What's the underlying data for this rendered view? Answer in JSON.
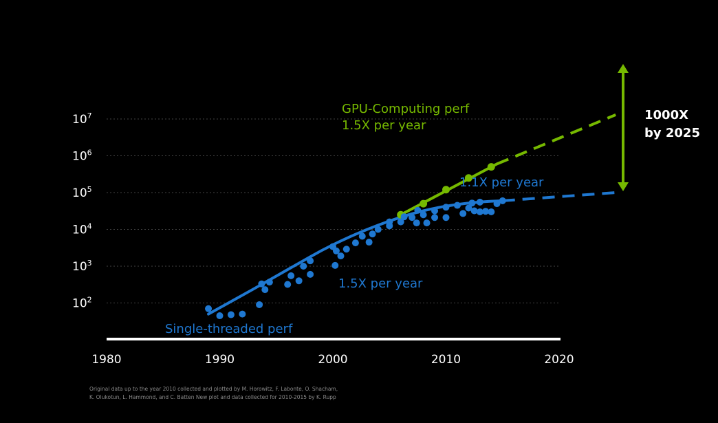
{
  "chart_data": {
    "type": "scatter",
    "title": "",
    "xlabel": "",
    "ylabel": "",
    "xlim": [
      1980,
      2025
    ],
    "ylim_log10": [
      1,
      7
    ],
    "y_scale": "log",
    "grid": true,
    "x_ticks": [
      "1980",
      "1990",
      "2000",
      "2010",
      "2020"
    ],
    "y_ticks": [
      {
        "base": "10",
        "exp": "7"
      },
      {
        "base": "10",
        "exp": "6"
      },
      {
        "base": "10",
        "exp": "5"
      },
      {
        "base": "10",
        "exp": "4"
      },
      {
        "base": "10",
        "exp": "3"
      },
      {
        "base": "10",
        "exp": "2"
      }
    ],
    "colors": {
      "gpu": "#76b900",
      "single": "#1f78d1",
      "axis": "#ffffff",
      "grid": "#444444"
    },
    "series": [
      {
        "name": "GPU-Computing perf",
        "points": [
          [
            2006,
            25000
          ],
          [
            2008,
            50000
          ],
          [
            2010,
            120000
          ],
          [
            2012,
            250000
          ],
          [
            2014,
            500000
          ]
        ],
        "trend_solid": [
          [
            2006,
            25000
          ],
          [
            2014.5,
            600000
          ]
        ],
        "trend_dashed": [
          [
            2014.5,
            600000
          ],
          [
            2025,
            13000000
          ]
        ]
      },
      {
        "name": "Single-threaded perf",
        "points": [
          [
            1989,
            70
          ],
          [
            1990,
            45
          ],
          [
            1991,
            48
          ],
          [
            1992,
            50
          ],
          [
            1993.5,
            90
          ],
          [
            1993.7,
            330
          ],
          [
            1994,
            230
          ],
          [
            1994.4,
            370
          ],
          [
            1996,
            320
          ],
          [
            1996.3,
            550
          ],
          [
            1997,
            400
          ],
          [
            1997.4,
            1000
          ],
          [
            1998,
            1400
          ],
          [
            1998,
            600
          ],
          [
            2000,
            3400
          ],
          [
            2000.3,
            2600
          ],
          [
            2000.7,
            1900
          ],
          [
            2000.2,
            1050
          ],
          [
            2001.2,
            2900
          ],
          [
            2002,
            4300
          ],
          [
            2002.6,
            6500
          ],
          [
            2003.2,
            4500
          ],
          [
            2003.5,
            7500
          ],
          [
            2004,
            10000
          ],
          [
            2005,
            12500
          ],
          [
            2005,
            16000
          ],
          [
            2006,
            16000
          ],
          [
            2006.3,
            22000
          ],
          [
            2007,
            21000
          ],
          [
            2007.5,
            33000
          ],
          [
            2007.4,
            15000
          ],
          [
            2008,
            25000
          ],
          [
            2008.3,
            15000
          ],
          [
            2009,
            32000
          ],
          [
            2009,
            21000
          ],
          [
            2010,
            40000
          ],
          [
            2010,
            21000
          ],
          [
            2011,
            45000
          ],
          [
            2011.5,
            27000
          ],
          [
            2012,
            38000
          ],
          [
            2012.3,
            52000
          ],
          [
            2012.5,
            32000
          ],
          [
            2013,
            30000
          ],
          [
            2013,
            55000
          ],
          [
            2013.5,
            31000
          ],
          [
            2014,
            30000
          ],
          [
            2014.5,
            50000
          ],
          [
            2015,
            60000
          ]
        ],
        "trend_points": [
          [
            1989,
            50
          ],
          [
            1991,
            110
          ],
          [
            1993,
            240
          ],
          [
            1995,
            540
          ],
          [
            1997,
            1200
          ],
          [
            1999,
            2700
          ],
          [
            2001,
            5400
          ],
          [
            2003,
            10000
          ],
          [
            2005,
            17000
          ],
          [
            2007,
            27000
          ],
          [
            2009,
            38000
          ],
          [
            2011,
            48000
          ],
          [
            2013,
            56000
          ],
          [
            2015,
            60000
          ]
        ],
        "trend_dashed": [
          [
            2015,
            60000
          ],
          [
            2025,
            100000
          ]
        ]
      }
    ],
    "annotations": {
      "gpu_name": "GPU-Computing perf",
      "gpu_rate": "1.5X per year",
      "single_name": "Single-threaded perf",
      "single_rate_early": "1.5X per year",
      "single_rate_late": "1.1X per year",
      "gap_line1": "1000X",
      "gap_line2": "by 2025"
    }
  },
  "credits": [
    "Original data up to the year 2010 collected and plotted by M. Horowitz, F. Labonte, O. Shacham,",
    "K. Olukotun, L. Hammond, and C. Batten New plot and data collected for 2010-2015 by K. Rupp"
  ]
}
